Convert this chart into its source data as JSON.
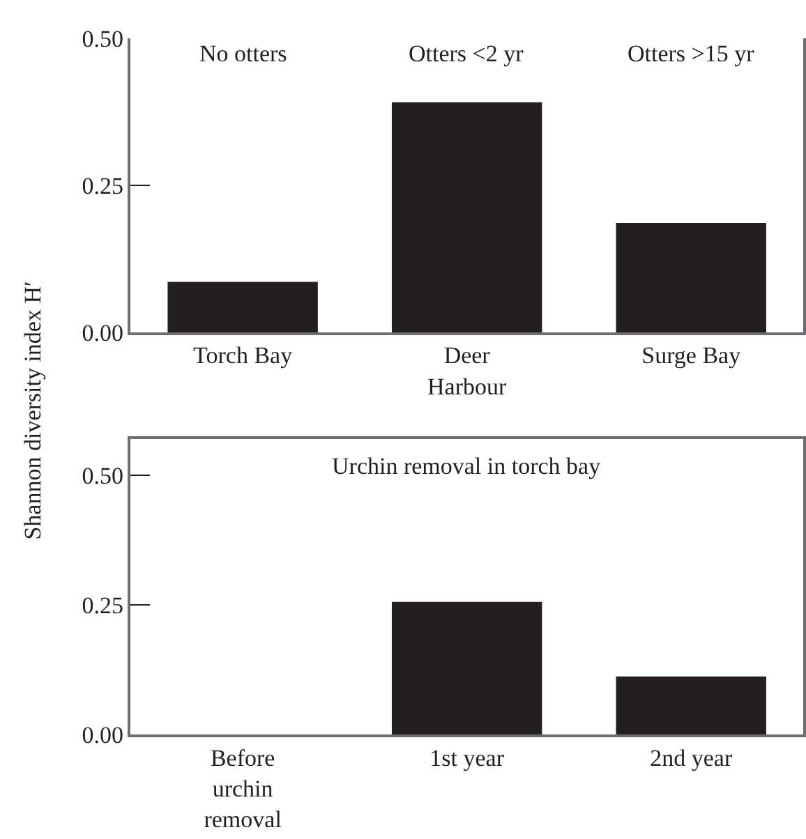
{
  "chart_data": [
    {
      "type": "bar",
      "ylabel": "Shannon diversity index H′",
      "categories": [
        "Torch Bay",
        "Deer\nHarbour",
        "Surge Bay"
      ],
      "values": [
        0.086,
        0.391,
        0.186
      ],
      "color": "#231f20",
      "ylim": [
        0,
        0.5
      ],
      "yticks": [
        {
          "value": 0,
          "label": "0.00"
        },
        {
          "value": 0.25,
          "label": "0.25"
        },
        {
          "value": 0.5,
          "label": "0.50"
        }
      ],
      "annotations": [
        "No otters",
        "Otters <2 yr",
        "Otters >15 yr"
      ]
    },
    {
      "type": "bar",
      "title": "Urchin removal in torch bay",
      "categories": [
        "Before\nurchin\nremoval",
        "1st year",
        "2nd year"
      ],
      "values": [
        0,
        0.256,
        0.112
      ],
      "color": "#231f20",
      "ylim": [
        0,
        0.57
      ],
      "yticks": [
        {
          "value": 0,
          "label": "0.00"
        },
        {
          "value": 0.25,
          "label": "0.25"
        },
        {
          "value": 0.5,
          "label": "0.50"
        }
      ]
    }
  ]
}
